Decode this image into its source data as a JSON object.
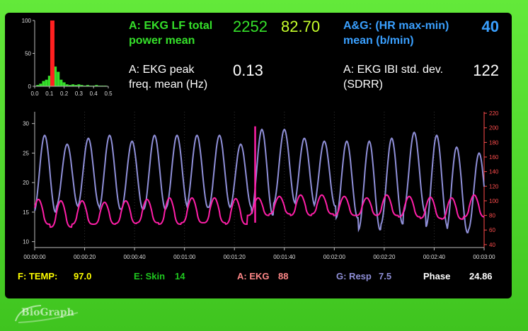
{
  "colors": {
    "green": "#35e02a",
    "lime": "#c6ff2b",
    "blue": "#3aa0ff",
    "white": "#ffffff",
    "purple": "#8f8fd8",
    "magenta": "#ff1fa8",
    "yellow": "#ffff00",
    "status_green": "#1fc81f",
    "status_pink": "#ff8888",
    "red": "#ff2020",
    "axis_right": "#ff4d4d"
  },
  "stats": {
    "lf_power": {
      "label_line1": "A: EKG LF total",
      "label_line2": "power mean",
      "value1": "2252",
      "value2": "82.70"
    },
    "hr_maxmin": {
      "label_line1": "A&G: (HR max-min)",
      "label_line2": "mean (b/min)",
      "value": "40"
    },
    "peak_freq": {
      "label_line1": "A: EKG peak",
      "label_line2": "freq. mean (Hz)",
      "value": "0.13"
    },
    "ibi_sd": {
      "label_line1": "A: EKG IBI std. dev.",
      "label_line2": "(SDRR)",
      "value": "122"
    }
  },
  "status_bar": {
    "temp": {
      "label": "F: TEMP:",
      "value": "97.0"
    },
    "skin": {
      "label": "E: Skin",
      "value": "14"
    },
    "ekg": {
      "label": "A: EKG",
      "value": "88"
    },
    "resp": {
      "label": "G: Resp",
      "value": "7.5"
    },
    "phase": {
      "label": "Phase",
      "value": "24.86"
    }
  },
  "logo": {
    "text": "BioGraph"
  },
  "chart_data": [
    {
      "type": "bar",
      "x_ticks": [
        "0.0",
        "0.1",
        "0.2",
        "0.3",
        "0.4",
        "0.5"
      ],
      "y_ticks": [
        "0",
        "50",
        "100"
      ],
      "xlim": [
        0,
        0.5
      ],
      "ylim": [
        0,
        100
      ],
      "bins": [
        0.02,
        0.04,
        0.06,
        0.08,
        0.1,
        0.12,
        0.14,
        0.16,
        0.18,
        0.2,
        0.22,
        0.24,
        0.26,
        0.28,
        0.3,
        0.32,
        0.34,
        0.36,
        0.38,
        0.4,
        0.42,
        0.44,
        0.46,
        0.48
      ],
      "values": [
        2,
        4,
        8,
        10,
        16,
        70,
        30,
        22,
        10,
        6,
        3,
        2,
        3,
        2,
        3,
        2,
        1,
        2,
        1,
        1,
        2,
        1,
        1,
        1
      ],
      "highlight": 0.12,
      "highlight_value": 100
    },
    {
      "type": "line",
      "x_ticks": [
        "00:00:00",
        "00:00:20",
        "00:00:40",
        "00:01:00",
        "00:01:20",
        "00:01:40",
        "00:02:00",
        "00:02:20",
        "00:02:40",
        "00:03:00"
      ],
      "xlim": [
        0,
        180
      ],
      "left_axis": {
        "ticks": [
          "10",
          "15",
          "20",
          "25",
          "30"
        ],
        "ylim": [
          9,
          32
        ]
      },
      "right_axis": {
        "ticks": [
          "40",
          "60",
          "80",
          "100",
          "120",
          "140",
          "160",
          "180",
          "200",
          "220"
        ],
        "ylim": [
          36,
          222
        ]
      },
      "series": [
        {
          "axis": "left",
          "peak_times": [
            4,
            13,
            21.5,
            30,
            39,
            48,
            57,
            65,
            74,
            82.5,
            91,
            100,
            108,
            116,
            125,
            134,
            143,
            152,
            161,
            169,
            178
          ],
          "peak_values": [
            28,
            26.5,
            27.5,
            28,
            27,
            28,
            28,
            28,
            28,
            26.5,
            29,
            29,
            27.5,
            27,
            27,
            27,
            27.5,
            28.5,
            28,
            26,
            25
          ],
          "trough_values": [
            15,
            16,
            16,
            15.5,
            15.5,
            15.5,
            15.8,
            15.8,
            15.8,
            15.8,
            14.5,
            16.5,
            16,
            16,
            14,
            12,
            13,
            15,
            12.5,
            11.5,
            12
          ]
        },
        {
          "axis": "right",
          "peak_times": [
            1.5,
            10.5,
            19,
            28,
            36.5,
            45,
            54,
            63,
            72,
            80.5,
            89.5,
            98,
            106.5,
            115,
            124,
            133,
            141,
            150,
            158.5,
            167,
            176
          ],
          "peak_values": [
            102,
            100,
            100,
            98,
            100,
            102,
            104,
            104,
            104,
            103,
            104,
            106,
            108,
            108,
            106,
            104,
            108,
            106,
            105,
            104,
            108
          ],
          "trough_values": [
            68,
            64,
            68,
            68,
            69,
            70,
            68,
            70,
            70,
            68,
            80,
            82,
            80,
            82,
            80,
            80,
            80,
            78,
            76,
            75,
            78
          ],
          "spike": {
            "t": 88.3,
            "value": 202
          }
        }
      ]
    }
  ]
}
